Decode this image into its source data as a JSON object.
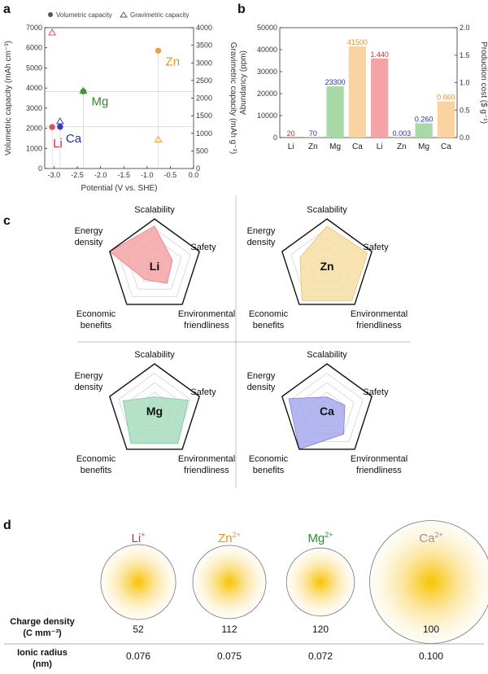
{
  "panels": {
    "a": "a",
    "b": "b",
    "c": "c",
    "d": "d"
  },
  "chart_data": [
    {
      "type": "scatter",
      "panel": "a",
      "legend": [
        "Volumetric capacity",
        "Gravimetric capacity"
      ],
      "xlabel": "Potential (V vs. SHE)",
      "ylabel": "Volumetric capacity (mAh cm⁻³)",
      "y2label": "Gravimetric capacity (mAh g⁻¹)",
      "xlim": [
        -3.2,
        0.0
      ],
      "ylim": [
        0,
        7000
      ],
      "y2lim": [
        0,
        4000
      ],
      "xticks": [
        "-3.0",
        "-2.5",
        "-2.0",
        "-1.5",
        "-1.0",
        "-0.5",
        "0.0"
      ],
      "yticks": [
        "0",
        "1000",
        "2000",
        "3000",
        "4000",
        "5000",
        "6000",
        "7000"
      ],
      "y2ticks": [
        "0",
        "500",
        "1000",
        "1500",
        "2000",
        "2500",
        "3000",
        "3500",
        "4000"
      ],
      "series": [
        {
          "name": "Volumetric capacity",
          "points": [
            {
              "label": "Li",
              "x": -3.04,
              "y": 2062,
              "color": "#e0524f"
            },
            {
              "label": "Ca",
              "x": -2.87,
              "y": 2073,
              "color": "#3b3fb5"
            },
            {
              "label": "Mg",
              "x": -2.37,
              "y": 3833,
              "color": "#3a9a3a"
            },
            {
              "label": "Zn",
              "x": -0.76,
              "y": 5855,
              "color": "#e8a33a"
            }
          ]
        },
        {
          "name": "Gravimetric capacity",
          "points": [
            {
              "label": "Li",
              "x": -3.04,
              "y2": 3860,
              "color": "#e0524f"
            },
            {
              "label": "Ca",
              "x": -2.87,
              "y2": 1340,
              "color": "#3b3fb5"
            },
            {
              "label": "Mg",
              "x": -2.37,
              "y2": 2205,
              "color": "#3a9a3a"
            },
            {
              "label": "Zn",
              "x": -0.76,
              "y2": 820,
              "color": "#e8a33a"
            }
          ]
        }
      ],
      "labels": [
        {
          "text": "Li",
          "color": "#d6303a"
        },
        {
          "text": "Ca",
          "color": "#2a2f9a"
        },
        {
          "text": "Mg",
          "color": "#2f8a2f"
        },
        {
          "text": "Zn",
          "color": "#e0951f"
        }
      ]
    },
    {
      "type": "bar",
      "panel": "b",
      "ylabel": "Abundancy (ppm)",
      "y2label": "Production cost ($ g⁻¹)",
      "ylim": [
        0,
        50000
      ],
      "y2lim": [
        0,
        2.0
      ],
      "yticks": [
        "0",
        "10000",
        "20000",
        "30000",
        "40000",
        "50000"
      ],
      "y2ticks": [
        "0.0",
        "0.5",
        "1.0",
        "1.5",
        "2.0"
      ],
      "groups": [
        {
          "name": "Abundancy",
          "categories": [
            "Li",
            "Zn",
            "Mg",
            "Ca"
          ],
          "values": [
            20,
            70,
            23300,
            41500
          ],
          "labels": [
            "20",
            "70",
            "23300",
            "41500"
          ]
        },
        {
          "name": "Production cost",
          "categories": [
            "Li",
            "Zn",
            "Mg",
            "Ca"
          ],
          "values": [
            1.44,
            0.003,
            0.26,
            0.66
          ],
          "labels": [
            "1.440",
            "0.003",
            "0.260",
            "0.660"
          ]
        }
      ],
      "colors": {
        "Li": "#f4a3a6",
        "Zn": "#f7d58c",
        "Mg": "#a9d9a7",
        "Ca": "#fbd3a0"
      },
      "label_colors": {
        "Li": "#c0392b",
        "Zn": "#2a2f9a",
        "Mg": "#2a2f9a",
        "Ca": "#e0951f"
      }
    },
    {
      "type": "radar",
      "panel": "c",
      "axes": [
        "Scalability",
        "Safety",
        "Environmental friendliness",
        "Economic benefits",
        "Energy density"
      ],
      "axis_text": {
        "scalability": "Scalability",
        "safety": "Safety",
        "env1": "Environmental",
        "env2": "friendliness",
        "econ1": "Economic",
        "econ2": "benefits",
        "energy1": "Energy",
        "energy2": "density"
      },
      "charts": [
        {
          "name": "Li",
          "values": [
            0.85,
            0.4,
            0.45,
            0.35,
            1.0
          ],
          "fill": "#f4a3a6",
          "stroke": "#e77e84"
        },
        {
          "name": "Zn",
          "values": [
            0.85,
            0.9,
            0.9,
            0.9,
            0.6
          ],
          "fill": "#f7deA6",
          "stroke": "#e8c070"
        },
        {
          "name": "Mg",
          "values": [
            0.3,
            0.75,
            0.85,
            0.85,
            0.7
          ],
          "fill": "#a9dcbf",
          "stroke": "#7cc59c"
        },
        {
          "name": "Ca",
          "values": [
            0.3,
            0.4,
            0.6,
            1.0,
            0.85
          ],
          "fill": "#a7a9ec",
          "stroke": "#7f82d8"
        }
      ]
    },
    {
      "type": "table",
      "panel": "d",
      "ions": [
        {
          "name": "Li",
          "sup": "+",
          "color": "#d6303a",
          "radius": 0.076,
          "charge_density": "52",
          "ionic_radius": "0.076"
        },
        {
          "name": "Zn",
          "sup": "2+",
          "color": "#e0951f",
          "radius": 0.075,
          "charge_density": "112",
          "ionic_radius": "0.075"
        },
        {
          "name": "Mg",
          "sup": "2+",
          "color": "#2f8a2f",
          "radius": 0.072,
          "charge_density": "120",
          "ionic_radius": "0.072"
        },
        {
          "name": "Ca",
          "sup": "2+",
          "color": "#2a2f9a",
          "radius": 0.1,
          "charge_density": "100",
          "ionic_radius": "0.100"
        }
      ],
      "rows": {
        "charge_label1": "Charge density",
        "charge_label2": "(C mm⁻³)",
        "radius_label1": "Ionic radius",
        "radius_label2": "(nm)"
      }
    }
  ]
}
